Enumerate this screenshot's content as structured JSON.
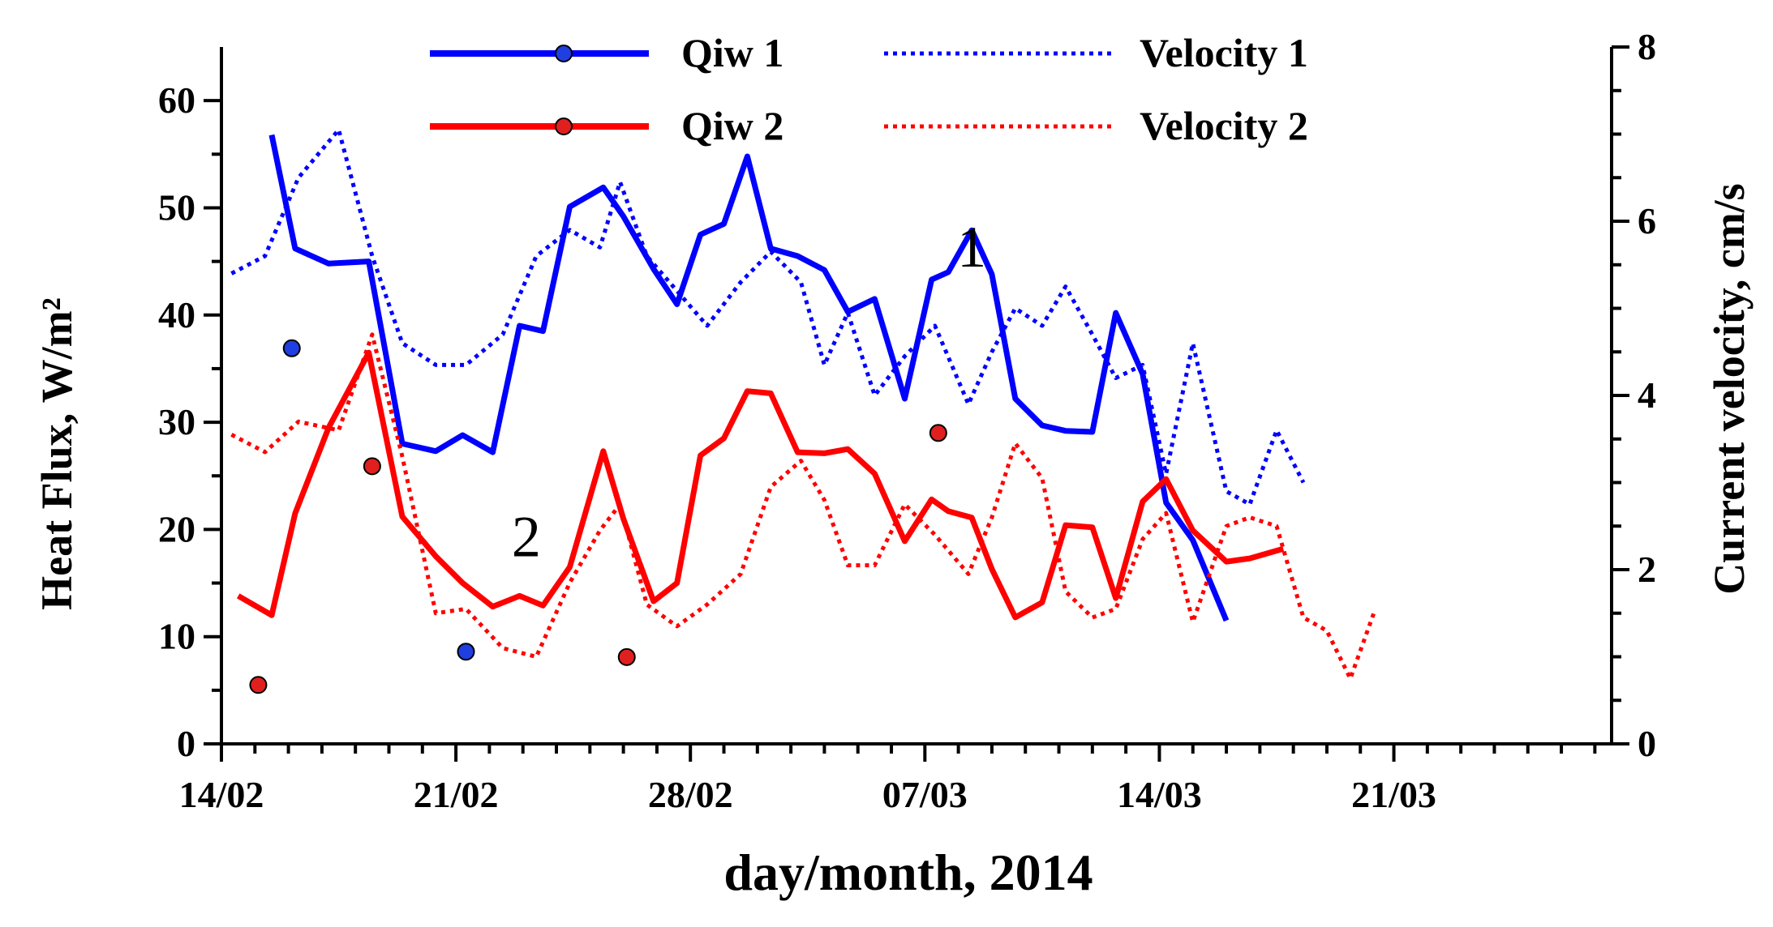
{
  "chart_data": {
    "type": "line",
    "xlabel": "day/month, 2014",
    "ylabel_left": "Heat Flux, W/m²",
    "ylabel_right": "Current velocity, cm/s",
    "x_start_date": "2014-02-14",
    "x_range_days": [
      0,
      41.5
    ],
    "x_ticks": [
      {
        "day": 0,
        "label": "14/02"
      },
      {
        "day": 7,
        "label": "21/02"
      },
      {
        "day": 14,
        "label": "28/02"
      },
      {
        "day": 21,
        "label": "07/03"
      },
      {
        "day": 28,
        "label": "14/03"
      },
      {
        "day": 35,
        "label": "21/03"
      }
    ],
    "y_left_lim": [
      0,
      65
    ],
    "y_left_ticks": [
      0,
      10,
      20,
      30,
      40,
      50,
      60
    ],
    "y_right_lim": [
      0,
      8
    ],
    "y_right_ticks": [
      0,
      2,
      4,
      6,
      8
    ],
    "grid": false,
    "legend_position": "top-center",
    "annotations": [
      {
        "text": "1",
        "day": 22.4,
        "y": 44.5
      },
      {
        "text": "2",
        "day": 9.1,
        "y": 17.5
      }
    ],
    "series": [
      {
        "name": "Qiw 1",
        "axis": "left",
        "style": "solid",
        "color": "#0000ff",
        "x": [
          1.5,
          2.2,
          3.2,
          4.4,
          5.4,
          6.4,
          7.2,
          8.1,
          8.9,
          9.6,
          10.4,
          11.4,
          12.0,
          12.9,
          13.6,
          14.3,
          15.0,
          15.7,
          16.4,
          17.2,
          18.0,
          18.7,
          19.5,
          20.4,
          21.2,
          21.7,
          22.4,
          23.0,
          23.7,
          24.5,
          25.2,
          26.0,
          26.7,
          27.5,
          28.2,
          29.0,
          30.0,
          30.7,
          31.7,
          32.2,
          33.0,
          33.8,
          34.5,
          35.2,
          35.9,
          36.5
        ],
        "y": [
          56.8,
          46.2,
          44.8,
          45.0,
          28.0,
          27.3,
          28.8,
          27.2,
          39.0,
          38.5,
          50.1,
          51.9,
          49.2,
          44.3,
          41.0,
          47.5,
          48.5,
          54.8,
          46.2,
          45.5,
          44.2,
          40.3,
          41.5,
          32.2,
          43.3,
          44.0,
          47.9,
          43.8,
          32.2,
          29.7,
          29.2,
          29.1,
          40.2,
          34.5,
          22.5,
          19.0,
          11.5,
          null,
          null,
          null,
          null,
          null,
          null,
          null,
          null,
          null
        ]
      },
      {
        "name": "Qiw 2",
        "axis": "left",
        "style": "solid",
        "color": "#ff0000",
        "x": [
          0.5,
          1.5,
          2.2,
          3.2,
          4.4,
          5.4,
          6.4,
          7.2,
          8.1,
          8.9,
          9.6,
          10.4,
          11.4,
          12.0,
          12.9,
          13.6,
          14.3,
          15.0,
          15.7,
          16.4,
          17.2,
          18.0,
          18.7,
          19.5,
          20.4,
          21.2,
          21.7,
          22.4,
          23.0,
          23.7,
          24.5,
          25.2,
          26.0,
          26.7,
          27.5,
          28.2,
          29.0,
          30.0,
          30.7,
          31.7,
          32.2,
          33.0,
          33.8,
          34.5
        ],
        "y": [
          13.8,
          12.0,
          21.5,
          29.5,
          36.5,
          21.2,
          17.5,
          15.0,
          12.8,
          13.8,
          12.9,
          16.5,
          27.3,
          21.0,
          13.3,
          15.0,
          26.9,
          28.5,
          32.9,
          32.7,
          27.2,
          27.1,
          27.5,
          25.2,
          18.9,
          22.8,
          21.7,
          21.1,
          16.3,
          11.8,
          13.2,
          20.4,
          20.2,
          13.6,
          22.6,
          24.7,
          19.9,
          17.0,
          17.3,
          18.2,
          null,
          null,
          null,
          null
        ]
      },
      {
        "name": "Velocity 1",
        "axis": "right",
        "style": "dotted",
        "color": "#0000ff",
        "x": [
          0.3,
          1.3,
          2.3,
          3.5,
          4.5,
          5.4,
          6.4,
          7.3,
          8.4,
          9.4,
          10.4,
          11.3,
          11.9,
          12.7,
          13.6,
          14.5,
          15.5,
          16.4,
          17.3,
          18.0,
          18.7,
          19.5,
          20.4,
          21.3,
          22.3,
          23.0,
          23.7,
          24.5,
          25.2,
          26.0,
          26.7,
          27.5,
          28.2,
          29.0,
          30.0,
          30.7,
          31.5,
          32.3,
          33.0,
          33.7,
          34.4,
          35.0,
          35.8,
          36.3,
          36.9
        ],
        "y": [
          5.4,
          5.6,
          6.5,
          7.05,
          5.6,
          4.6,
          4.35,
          4.35,
          4.7,
          5.6,
          5.9,
          5.7,
          6.45,
          5.6,
          5.2,
          4.8,
          5.3,
          5.65,
          5.3,
          4.35,
          4.95,
          4.0,
          4.45,
          4.8,
          3.9,
          4.5,
          5.0,
          4.8,
          5.25,
          4.7,
          4.2,
          4.35,
          3.1,
          4.6,
          2.9,
          2.75,
          3.6,
          3.0,
          null,
          null,
          null,
          null,
          null,
          null,
          null
        ]
      },
      {
        "name": "Velocity 2",
        "axis": "right",
        "style": "dotted",
        "color": "#ff0000",
        "x": [
          0.3,
          1.3,
          2.3,
          3.5,
          4.5,
          5.4,
          6.4,
          7.3,
          8.4,
          9.4,
          10.4,
          11.3,
          11.9,
          12.7,
          13.6,
          14.5,
          15.5,
          16.4,
          17.3,
          18.0,
          18.7,
          19.5,
          20.4,
          21.3,
          22.3,
          23.0,
          23.7,
          24.5,
          25.2,
          26.0,
          26.7,
          27.5,
          28.2,
          29.0,
          30.0,
          30.7,
          31.5,
          32.3,
          33.0,
          33.7,
          34.4,
          35.0,
          35.8,
          36.3,
          36.9
        ],
        "y": [
          3.55,
          3.35,
          3.7,
          3.6,
          4.7,
          3.3,
          1.5,
          1.55,
          1.1,
          1.0,
          1.85,
          2.45,
          2.75,
          1.6,
          1.35,
          1.6,
          1.95,
          2.95,
          3.25,
          2.8,
          2.05,
          2.05,
          2.75,
          2.4,
          1.95,
          2.6,
          3.45,
          3.05,
          1.75,
          1.45,
          1.55,
          2.35,
          2.65,
          1.4,
          2.5,
          2.6,
          2.5,
          1.45,
          1.3,
          0.75,
          1.5,
          null,
          null,
          null,
          null
        ]
      }
    ],
    "extra_points": [
      {
        "series": "Qiw 1",
        "color": "#1f3fe0",
        "day": 2.1,
        "y": 36.9
      },
      {
        "series": "Qiw 1",
        "color": "#1f3fe0",
        "day": 7.3,
        "y": 8.6
      },
      {
        "series": "Qiw 2",
        "color": "#e01f1f",
        "day": 1.1,
        "y": 5.5
      },
      {
        "series": "Qiw 2",
        "color": "#e01f1f",
        "day": 4.5,
        "y": 25.9
      },
      {
        "series": "Qiw 2",
        "color": "#e01f1f",
        "day": 12.1,
        "y": 8.1
      },
      {
        "series": "Qiw 2",
        "color": "#e01f1f",
        "day": 21.4,
        "y": 29.0
      }
    ],
    "legend": [
      {
        "label": "Qiw 1",
        "color": "#0000ff",
        "style": "solid",
        "marker": true,
        "marker_color": "#1f3fe0"
      },
      {
        "label": "Velocity 1",
        "color": "#0000ff",
        "style": "dotted",
        "marker": false
      },
      {
        "label": "Qiw 2",
        "color": "#ff0000",
        "style": "solid",
        "marker": true,
        "marker_color": "#e01f1f"
      },
      {
        "label": "Velocity 2",
        "color": "#ff0000",
        "style": "dotted",
        "marker": false
      }
    ]
  }
}
